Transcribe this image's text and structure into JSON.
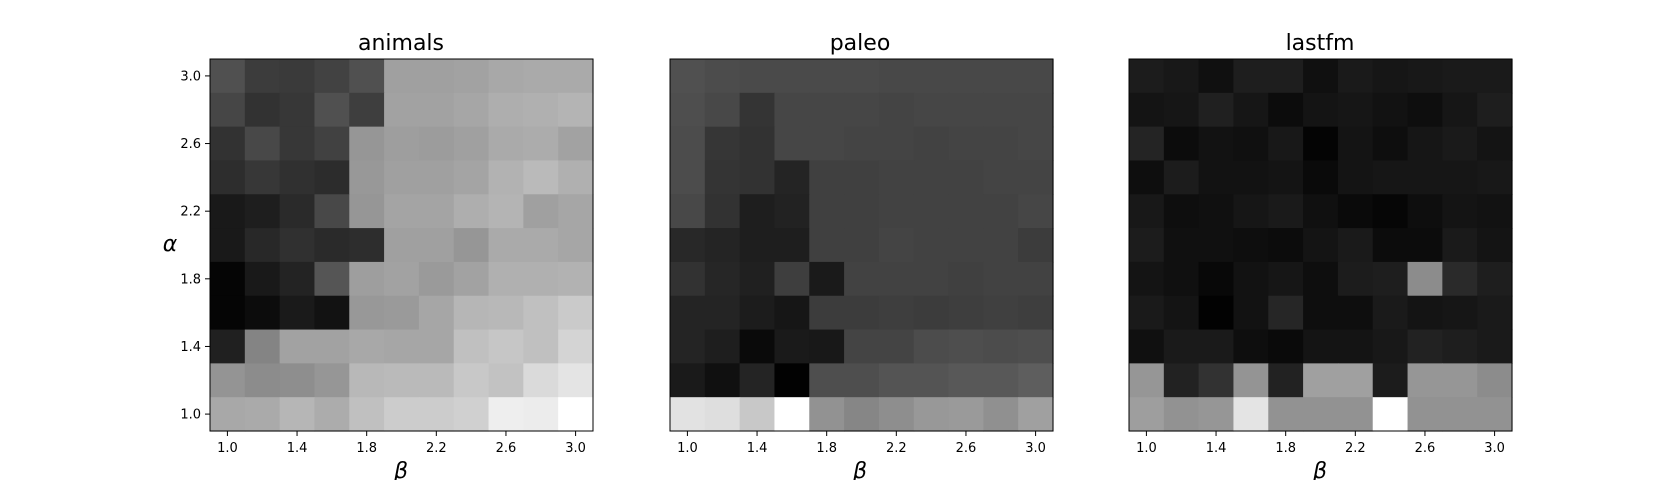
{
  "figure": {
    "background": "#ffffff"
  },
  "chart_data": [
    {
      "type": "heatmap",
      "title": "animals",
      "xlabel": "β",
      "ylabel": "α",
      "x": [
        1.0,
        1.2,
        1.4,
        1.6,
        1.8,
        2.0,
        2.2,
        2.4,
        2.6,
        2.8,
        3.0
      ],
      "y": [
        3.0,
        2.8,
        2.6,
        2.4,
        2.2,
        2.0,
        1.8,
        1.6,
        1.4,
        1.2,
        1.0
      ],
      "xticks": [
        "1.0",
        "1.4",
        "1.8",
        "2.2",
        "2.6",
        "3.0"
      ],
      "yticks": [
        "3.0",
        "2.6",
        "2.2",
        "1.8",
        "1.4",
        "1.0"
      ],
      "values": [
        [
          80,
          60,
          58,
          66,
          80,
          160,
          160,
          162,
          168,
          170,
          170
        ],
        [
          70,
          50,
          55,
          80,
          62,
          162,
          162,
          166,
          174,
          176,
          180
        ],
        [
          50,
          72,
          55,
          65,
          150,
          158,
          156,
          160,
          170,
          172,
          162
        ],
        [
          45,
          55,
          48,
          44,
          152,
          160,
          160,
          164,
          178,
          186,
          176
        ],
        [
          25,
          30,
          42,
          72,
          150,
          164,
          164,
          174,
          180,
          160,
          166
        ],
        [
          25,
          40,
          48,
          42,
          45,
          160,
          160,
          150,
          170,
          170,
          166
        ],
        [
          5,
          25,
          35,
          85,
          158,
          162,
          154,
          162,
          176,
          176,
          178
        ],
        [
          5,
          12,
          26,
          18,
          152,
          154,
          166,
          182,
          184,
          192,
          202
        ],
        [
          32,
          132,
          162,
          162,
          168,
          166,
          166,
          192,
          198,
          192,
          212
        ],
        [
          148,
          140,
          142,
          150,
          184,
          186,
          186,
          200,
          194,
          218,
          228
        ],
        [
          168,
          170,
          182,
          172,
          192,
          204,
          204,
          208,
          238,
          236,
          255
        ]
      ]
    },
    {
      "type": "heatmap",
      "title": "paleo",
      "xlabel": "β",
      "ylabel": "",
      "x": [
        1.0,
        1.2,
        1.4,
        1.6,
        1.8,
        2.0,
        2.2,
        2.4,
        2.6,
        2.8,
        3.0
      ],
      "y": [
        3.0,
        2.8,
        2.6,
        2.4,
        2.2,
        2.0,
        1.8,
        1.6,
        1.4,
        1.2,
        1.0
      ],
      "xticks": [
        "1.0",
        "1.4",
        "1.8",
        "2.2",
        "2.6",
        "3.0"
      ],
      "yticks": [],
      "values": [
        [
          80,
          76,
          74,
          74,
          74,
          74,
          72,
          72,
          72,
          72,
          72
        ],
        [
          78,
          72,
          52,
          70,
          70,
          70,
          68,
          70,
          70,
          70,
          70
        ],
        [
          76,
          54,
          50,
          70,
          70,
          68,
          68,
          66,
          68,
          68,
          70
        ],
        [
          76,
          52,
          50,
          36,
          64,
          64,
          66,
          66,
          66,
          68,
          68
        ],
        [
          72,
          50,
          30,
          34,
          64,
          64,
          66,
          66,
          66,
          66,
          70
        ],
        [
          40,
          36,
          30,
          30,
          64,
          64,
          68,
          66,
          66,
          66,
          60
        ],
        [
          50,
          38,
          32,
          62,
          26,
          66,
          66,
          66,
          64,
          66,
          66
        ],
        [
          36,
          36,
          28,
          22,
          60,
          60,
          62,
          60,
          62,
          64,
          62
        ],
        [
          36,
          30,
          10,
          26,
          24,
          68,
          68,
          76,
          78,
          76,
          78
        ],
        [
          26,
          16,
          36,
          2,
          78,
          78,
          84,
          84,
          88,
          88,
          94
        ],
        [
          226,
          222,
          200,
          255,
          146,
          134,
          142,
          152,
          154,
          144,
          160
        ]
      ]
    },
    {
      "type": "heatmap",
      "title": "lastfm",
      "xlabel": "β",
      "ylabel": "",
      "x": [
        1.0,
        1.2,
        1.4,
        1.6,
        1.8,
        2.0,
        2.2,
        2.4,
        2.6,
        2.8,
        3.0
      ],
      "y": [
        3.0,
        2.8,
        2.6,
        2.4,
        2.2,
        2.0,
        1.8,
        1.6,
        1.4,
        1.2,
        1.0
      ],
      "xticks": [
        "1.0",
        "1.4",
        "1.8",
        "2.2",
        "2.6",
        "3.0"
      ],
      "yticks": [],
      "values": [
        [
          28,
          24,
          16,
          30,
          30,
          16,
          26,
          22,
          24,
          26,
          26
        ],
        [
          20,
          22,
          32,
          22,
          12,
          20,
          22,
          18,
          14,
          22,
          30
        ],
        [
          36,
          12,
          18,
          16,
          24,
          4,
          20,
          14,
          22,
          26,
          20
        ],
        [
          14,
          28,
          18,
          18,
          20,
          10,
          20,
          22,
          22,
          22,
          24
        ],
        [
          24,
          14,
          16,
          22,
          26,
          16,
          10,
          6,
          14,
          20,
          18
        ],
        [
          28,
          16,
          16,
          14,
          12,
          20,
          26,
          12,
          12,
          26,
          20
        ],
        [
          20,
          16,
          8,
          18,
          22,
          14,
          28,
          30,
          140,
          42,
          30
        ],
        [
          26,
          20,
          2,
          18,
          38,
          14,
          14,
          26,
          20,
          22,
          26
        ],
        [
          16,
          26,
          26,
          14,
          10,
          20,
          20,
          24,
          34,
          30,
          26
        ],
        [
          150,
          34,
          50,
          148,
          34,
          160,
          160,
          28,
          150,
          150,
          140
        ],
        [
          158,
          146,
          150,
          228,
          146,
          146,
          146,
          255,
          146,
          146,
          146
        ]
      ]
    }
  ]
}
